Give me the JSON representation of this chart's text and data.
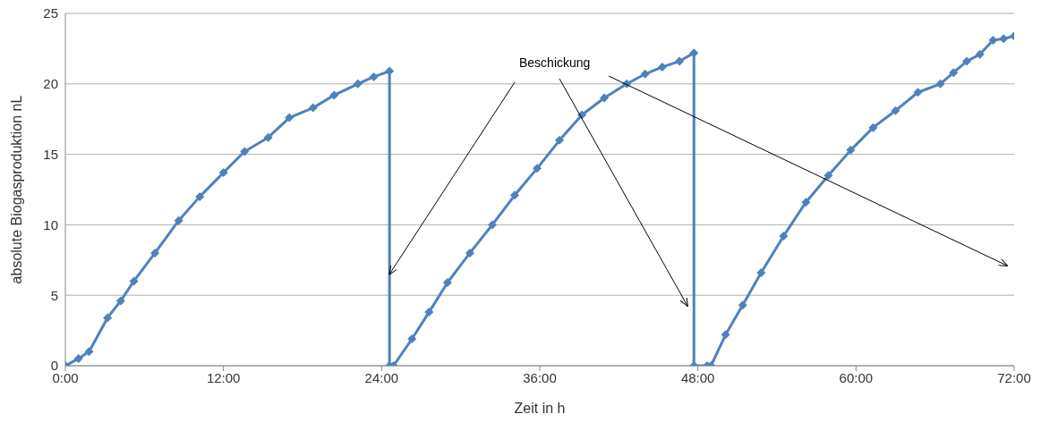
{
  "chart_data": {
    "type": "line",
    "xlabel": "Zeit in h",
    "ylabel": "absolute Biogasproduktion nL",
    "annotations": [
      {
        "text": "Beschickung",
        "x": 24.6,
        "y": 6.5
      }
    ],
    "x": [
      0,
      1,
      1.8,
      3.2,
      4.2,
      5.2,
      6.8,
      8.6,
      10.2,
      12,
      13.6,
      15.4,
      17,
      18.8,
      20.4,
      22.2,
      23.4,
      24.6,
      24.6,
      24.9,
      26.3,
      27.6,
      29,
      30.7,
      32.4,
      34.1,
      35.8,
      37.5,
      39.2,
      40.9,
      42.6,
      44,
      45.3,
      46.6,
      47.7,
      47.7,
      48.7,
      49,
      50.1,
      51.4,
      52.8,
      54.5,
      56.2,
      57.9,
      59.6,
      61.3,
      63,
      64.7,
      66.4,
      67.4,
      68.4,
      69.4,
      70.4,
      71.2,
      72
    ],
    "series": [
      {
        "color": "#4f81bd",
        "values": [
          0,
          0.5,
          1,
          3.4,
          4.6,
          6,
          8,
          10.3,
          12,
          13.7,
          15.2,
          16.2,
          17.6,
          18.3,
          19.2,
          20,
          20.5,
          20.9,
          0,
          0,
          1.9,
          3.8,
          5.9,
          8,
          10,
          12.1,
          14,
          16,
          17.8,
          19,
          20,
          20.7,
          21.2,
          21.6,
          22.2,
          0,
          0,
          0,
          2.2,
          4.3,
          6.6,
          9.2,
          11.6,
          13.5,
          15.3,
          16.9,
          18.1,
          19.4,
          20,
          20.8,
          21.6,
          22.1,
          23.1,
          23.2,
          23.4
        ]
      }
    ],
    "xlim": [
      0,
      72
    ],
    "xticks": [
      {
        "value": 0,
        "label": "0:00"
      },
      {
        "value": 12,
        "label": "12:00"
      },
      {
        "value": 24,
        "label": "24:00"
      },
      {
        "value": 36,
        "label": "36:00"
      },
      {
        "value": 48,
        "label": "48:00"
      },
      {
        "value": 60,
        "label": "60:00"
      },
      {
        "value": 72,
        "label": "72:00"
      }
    ],
    "ylim": [
      0,
      25
    ],
    "yticks": [
      0,
      5,
      10,
      15,
      20,
      25
    ],
    "grid": "y",
    "marker": "diamond",
    "line_style": "solid"
  }
}
